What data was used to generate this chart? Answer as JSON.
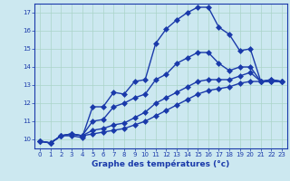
{
  "background_color": "#cce8f0",
  "grid_color": "#aad4c8",
  "line_color": "#1a3aaa",
  "xlabel": "Graphe des températures (°c)",
  "xlim": [
    -0.5,
    23.5
  ],
  "ylim": [
    9.5,
    17.5
  ],
  "yticks": [
    10,
    11,
    12,
    13,
    14,
    15,
    16,
    17
  ],
  "xticks": [
    0,
    1,
    2,
    3,
    4,
    5,
    6,
    7,
    8,
    9,
    10,
    11,
    12,
    13,
    14,
    15,
    16,
    17,
    18,
    19,
    20,
    21,
    22,
    23
  ],
  "series": [
    [
      9.9,
      9.8,
      10.2,
      10.2,
      10.1,
      11.8,
      11.8,
      12.6,
      12.5,
      13.2,
      13.3,
      15.3,
      16.1,
      16.6,
      17.0,
      17.3,
      17.3,
      16.2,
      15.8,
      14.9,
      15.0,
      13.2,
      13.3,
      13.2
    ],
    [
      9.9,
      9.8,
      10.2,
      10.3,
      10.2,
      11.0,
      11.1,
      11.8,
      12.0,
      12.3,
      12.5,
      13.3,
      13.6,
      14.2,
      14.5,
      14.8,
      14.8,
      14.2,
      13.8,
      14.0,
      14.0,
      13.2,
      13.3,
      13.2
    ],
    [
      9.9,
      9.8,
      10.2,
      10.3,
      10.2,
      10.5,
      10.6,
      10.8,
      10.9,
      11.2,
      11.5,
      12.0,
      12.3,
      12.6,
      12.9,
      13.2,
      13.3,
      13.3,
      13.3,
      13.5,
      13.7,
      13.2,
      13.2,
      13.2
    ],
    [
      9.9,
      9.8,
      10.2,
      10.3,
      10.2,
      10.3,
      10.4,
      10.5,
      10.6,
      10.8,
      11.0,
      11.3,
      11.6,
      11.9,
      12.2,
      12.5,
      12.7,
      12.8,
      12.9,
      13.1,
      13.2,
      13.2,
      13.2,
      13.2
    ]
  ],
  "tick_fontsize": 5.0,
  "xlabel_fontsize": 6.5,
  "linewidth": 1.0,
  "markersize": 3.0
}
